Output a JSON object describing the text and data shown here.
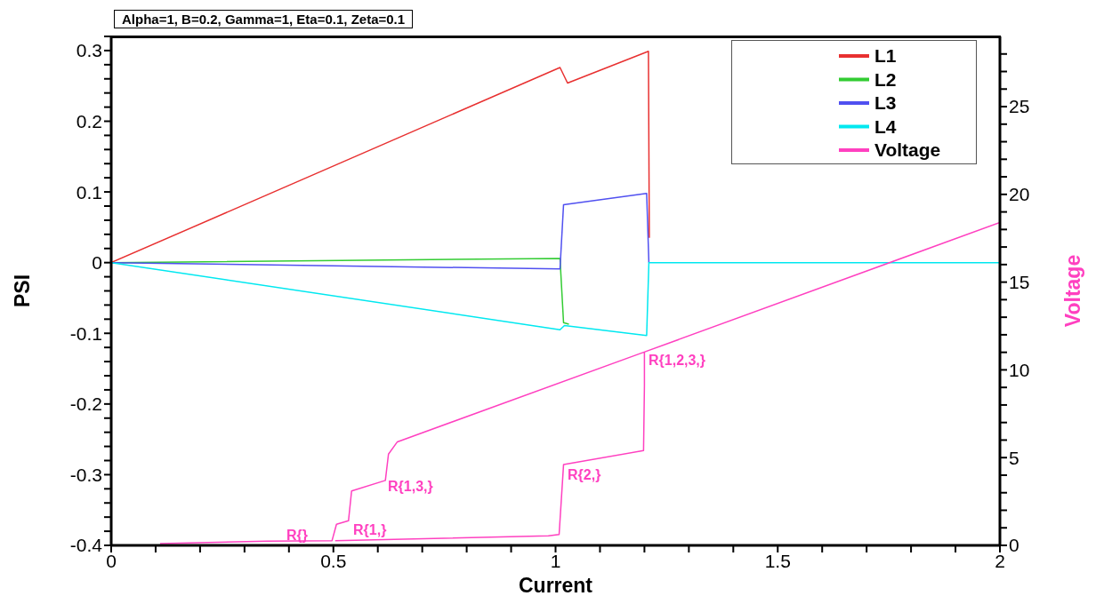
{
  "chart_data": {
    "type": "line",
    "title": "Alpha=1, B=0.2, Gamma=1, Eta=0.1, Zeta=0.1",
    "xlabel": "Current",
    "ylabel": "PSI",
    "y2label": "Voltage",
    "xlim": [
      0,
      2
    ],
    "xticks": [
      0,
      {
        "value": 0.1,
        "label": null
      },
      {
        "value": 0.2,
        "label": null
      },
      {
        "value": 0.3,
        "label": null
      },
      {
        "value": 0.4,
        "label": null
      },
      0.5,
      {
        "value": 0.6,
        "label": null
      },
      {
        "value": 0.7,
        "label": null
      },
      {
        "value": 0.8,
        "label": null
      },
      {
        "value": 0.9,
        "label": null
      },
      1,
      {
        "value": 1.1,
        "label": null
      },
      {
        "value": 1.2,
        "label": null
      },
      {
        "value": 1.3,
        "label": null
      },
      {
        "value": 1.4,
        "label": null
      },
      1.5,
      {
        "value": 1.6,
        "label": null
      },
      {
        "value": 1.7,
        "label": null
      },
      {
        "value": 1.8,
        "label": null
      },
      {
        "value": 1.9,
        "label": null
      },
      2
    ],
    "ylim": [
      -0.4,
      0.32
    ],
    "yticks": [
      -0.4,
      {
        "value": -0.38,
        "label": null
      },
      {
        "value": -0.36,
        "label": null
      },
      {
        "value": -0.34,
        "label": null
      },
      {
        "value": -0.32,
        "label": null
      },
      -0.3,
      {
        "value": -0.28,
        "label": null
      },
      {
        "value": -0.26,
        "label": null
      },
      {
        "value": -0.24,
        "label": null
      },
      {
        "value": -0.22,
        "label": null
      },
      -0.2,
      {
        "value": -0.18,
        "label": null
      },
      {
        "value": -0.16,
        "label": null
      },
      {
        "value": -0.14,
        "label": null
      },
      {
        "value": -0.12,
        "label": null
      },
      -0.1,
      {
        "value": -0.08,
        "label": null
      },
      {
        "value": -0.06,
        "label": null
      },
      {
        "value": -0.04,
        "label": null
      },
      {
        "value": -0.02,
        "label": null
      },
      0,
      {
        "value": 0.02,
        "label": null
      },
      {
        "value": 0.04,
        "label": null
      },
      {
        "value": 0.06,
        "label": null
      },
      {
        "value": 0.08,
        "label": null
      },
      0.1,
      {
        "value": 0.12,
        "label": null
      },
      {
        "value": 0.14,
        "label": null
      },
      {
        "value": 0.16,
        "label": null
      },
      {
        "value": 0.18,
        "label": null
      },
      0.2,
      {
        "value": 0.22,
        "label": null
      },
      {
        "value": 0.24,
        "label": null
      },
      {
        "value": 0.26,
        "label": null
      },
      {
        "value": 0.28,
        "label": null
      },
      0.3,
      {
        "value": 0.32,
        "label": null
      }
    ],
    "y2lim": [
      0,
      29
    ],
    "y2ticks": [
      0,
      {
        "value": 1,
        "label": null
      },
      {
        "value": 2,
        "label": null
      },
      {
        "value": 3,
        "label": null
      },
      {
        "value": 4,
        "label": null
      },
      5,
      {
        "value": 6,
        "label": null
      },
      {
        "value": 7,
        "label": null
      },
      {
        "value": 8,
        "label": null
      },
      {
        "value": 9,
        "label": null
      },
      10,
      {
        "value": 11,
        "label": null
      },
      {
        "value": 12,
        "label": null
      },
      {
        "value": 13,
        "label": null
      },
      {
        "value": 14,
        "label": null
      },
      15,
      {
        "value": 16,
        "label": null
      },
      {
        "value": 17,
        "label": null
      },
      {
        "value": 18,
        "label": null
      },
      {
        "value": 19,
        "label": null
      },
      20,
      {
        "value": 21,
        "label": null
      },
      {
        "value": 22,
        "label": null
      },
      {
        "value": 23,
        "label": null
      },
      {
        "value": 24,
        "label": null
      },
      25,
      {
        "value": 26,
        "label": null
      },
      {
        "value": 27,
        "label": null
      },
      {
        "value": 28,
        "label": null
      }
    ],
    "grid": false,
    "legend": "top right",
    "marker": "none",
    "line_style": "solid",
    "series": [
      {
        "name": "L1",
        "color": "#e83030",
        "x": [
          0,
          1.01,
          1.027,
          1.209,
          1.211
        ],
        "values": [
          0,
          0.276,
          0.254,
          0.299,
          0.035
        ]
      },
      {
        "name": "L2",
        "color": "#33cc33",
        "x": [
          0,
          1.01,
          1.018,
          1.03
        ],
        "values": [
          0,
          0.006,
          -0.085,
          -0.087
        ]
      },
      {
        "name": "L3",
        "color": "#5050f0",
        "x": [
          0,
          1.01,
          1.018,
          1.205,
          1.21
        ],
        "values": [
          0,
          -0.009,
          0.082,
          0.098,
          0
        ]
      },
      {
        "name": "L4",
        "color": "#00e8f0",
        "x": [
          0,
          1.01,
          1.02,
          1.205,
          1.21,
          2
        ],
        "values": [
          0,
          -0.095,
          -0.089,
          -0.103,
          0,
          0
        ]
      },
      {
        "name": "Voltage",
        "color": "#ff40c0",
        "axis": "y2",
        "x": [
          0.11,
          0.35,
          0.497,
          0.507,
          0.534,
          0.541,
          0.617,
          0.624,
          0.644,
          1.198,
          2,
          null,
          0.504,
          0.984,
          1.008,
          1.018,
          1.198,
          1.2,
          1.2
        ],
        "values": [
          0.1,
          0.24,
          0.27,
          1.2,
          1.4,
          3.1,
          3.7,
          5.2,
          5.9,
          11.0,
          18.4,
          null,
          0.27,
          0.54,
          0.62,
          4.6,
          5.4,
          9.1,
          11.0
        ]
      }
    ],
    "annotations": [
      "R{}",
      "R{1,}",
      "R{1,3,}",
      "R{2,}",
      "R{1,2,3,}"
    ]
  }
}
